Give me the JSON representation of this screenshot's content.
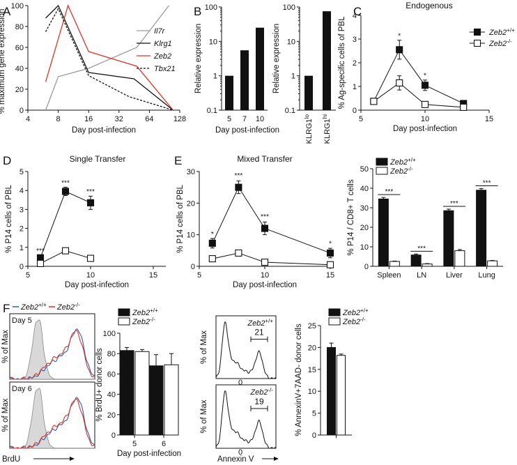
{
  "colors": {
    "ink": "#111111",
    "gray": "#9a9a9a",
    "red": "#e03020",
    "blue": "#2a5db0",
    "shade": "#d8d8d8"
  },
  "chart_data": [
    {
      "id": "A",
      "type": "line",
      "panel_label": "A",
      "xlabel": "Day post-infection",
      "ylabel": "% maximum gene expression",
      "x_scale": "log2",
      "xlim": [
        4,
        128
      ],
      "ylim": [
        0,
        100
      ],
      "x_ticks": [
        "4",
        "8",
        "16",
        "32",
        "64",
        "128"
      ],
      "y_ticks": [
        "0",
        "20",
        "40",
        "60",
        "80",
        "100"
      ],
      "series": [
        {
          "name": "Il7r",
          "color": "gray",
          "style": "solid",
          "x": [
            6,
            8,
            16,
            48,
            100
          ],
          "y": [
            0,
            32,
            40,
            60,
            100
          ]
        },
        {
          "name": "Klrg1",
          "color": "black",
          "style": "solid",
          "x": [
            6,
            8,
            16,
            45,
            110
          ],
          "y": [
            88,
            100,
            36,
            30,
            0
          ]
        },
        {
          "name": "Zeb2",
          "color": "red",
          "style": "solid",
          "x": [
            6,
            10,
            16,
            48,
            110
          ],
          "y": [
            27,
            100,
            56,
            42,
            0
          ]
        },
        {
          "name": "Tbx21",
          "color": "black",
          "style": "dashed",
          "x": [
            6,
            8,
            16,
            40,
            110
          ],
          "y": [
            75,
            97,
            33,
            13,
            0
          ]
        }
      ]
    },
    {
      "id": "B1",
      "type": "bar",
      "panel_label": "B",
      "xlabel": "Day post-infection",
      "ylabel": "Relative expression",
      "y_scale": "log10",
      "ylim": [
        0.1,
        100
      ],
      "y_ticks": [
        "0.1",
        "1",
        "10",
        "100"
      ],
      "categories": [
        "5",
        "7",
        "10"
      ],
      "values": [
        1,
        5.5,
        25
      ]
    },
    {
      "id": "B2",
      "type": "bar",
      "xlabel": "",
      "ylabel": "Relative expression",
      "y_scale": "log10",
      "ylim": [
        0.1,
        100
      ],
      "y_ticks": [
        "0.1",
        "1",
        "10",
        "100"
      ],
      "categories": [
        "KLRG1lo",
        "KLRG1hi"
      ],
      "category_labels": [
        [
          "KLRG1",
          "lo"
        ],
        [
          "KLRG1",
          "hi"
        ]
      ],
      "values": [
        1,
        75
      ]
    },
    {
      "id": "C",
      "type": "line",
      "panel_label": "C",
      "title": "Endogenous",
      "xlabel": "Day post-infection",
      "ylabel": "% Ag-specific cells of PBL",
      "xlim": [
        5,
        15
      ],
      "ylim": [
        0,
        4
      ],
      "x_ticks": [
        "5",
        "10",
        "15"
      ],
      "y_ticks": [
        "0",
        "1",
        "2",
        "3",
        "4"
      ],
      "legend": [
        {
          "base": "Zeb2",
          "sup": "+/+",
          "marker": "filled"
        },
        {
          "base": "Zeb2",
          "sup": "-/-",
          "marker": "open"
        }
      ],
      "series": [
        {
          "name": "Zeb2+/+",
          "marker": "filled",
          "x": [
            6,
            8,
            10,
            13
          ],
          "y": [
            0.37,
            2.55,
            1.05,
            0.28
          ],
          "err": [
            0,
            0.4,
            0.22,
            0.05
          ]
        },
        {
          "name": "Zeb2-/-",
          "marker": "open",
          "x": [
            6,
            8,
            10,
            13
          ],
          "y": [
            0.37,
            1.15,
            0.24,
            0.12
          ],
          "err": [
            0,
            0.3,
            0.05,
            0.03
          ]
        }
      ],
      "annotations": [
        {
          "x": 8,
          "y": 3.05,
          "text": "*"
        },
        {
          "x": 10,
          "y": 1.37,
          "text": "*"
        }
      ]
    },
    {
      "id": "D",
      "type": "line",
      "panel_label": "D",
      "title": "Single Transfer",
      "xlabel": "Day post-infection",
      "ylabel": "% P14 cells of PBL",
      "xlim": [
        5,
        16
      ],
      "ylim": [
        0,
        5
      ],
      "x_ticks": [
        "5",
        "10",
        "15"
      ],
      "y_ticks": [
        "0",
        "1",
        "2",
        "3",
        "4",
        "5"
      ],
      "series": [
        {
          "name": "Zeb2+/+",
          "marker": "filled",
          "x": [
            6,
            8,
            10
          ],
          "y": [
            0.45,
            3.95,
            3.35
          ],
          "err": [
            0.1,
            0.22,
            0.35
          ]
        },
        {
          "name": "Zeb2-/-",
          "marker": "open",
          "x": [
            6,
            8,
            10
          ],
          "y": [
            0.15,
            0.82,
            0.42
          ],
          "err": [
            0.03,
            0.08,
            0.05
          ]
        }
      ],
      "annotations": [
        {
          "x": 6,
          "y": 0.7,
          "text": "***"
        },
        {
          "x": 8,
          "y": 4.28,
          "text": "***"
        },
        {
          "x": 10,
          "y": 3.82,
          "text": "***"
        }
      ]
    },
    {
      "id": "E1",
      "type": "line",
      "panel_label": "E",
      "title": "Mixed Transfer",
      "xlabel": "Day post-infection",
      "ylabel": "% P14 cells of PBL",
      "xlim": [
        5,
        15
      ],
      "ylim": [
        0,
        30
      ],
      "x_ticks": [
        "5",
        "10",
        "15"
      ],
      "y_ticks": [
        "0",
        "10",
        "20",
        "30"
      ],
      "series": [
        {
          "name": "Zeb2+/+",
          "marker": "filled",
          "x": [
            6,
            8,
            10,
            15
          ],
          "y": [
            7.3,
            25,
            12,
            4.2
          ],
          "err": [
            1.5,
            2,
            2,
            1.5
          ]
        },
        {
          "name": "Zeb2-/-",
          "marker": "open",
          "x": [
            6,
            8,
            10,
            15
          ],
          "y": [
            2.4,
            4.2,
            1.3,
            0.5
          ],
          "err": [
            0.3,
            0.5,
            0.2,
            0.1
          ]
        }
      ],
      "annotations": [
        {
          "x": 6,
          "y": 9.5,
          "text": "*"
        },
        {
          "x": 8,
          "y": 28,
          "text": "***"
        },
        {
          "x": 10,
          "y": 15,
          "text": "***"
        },
        {
          "x": 15,
          "y": 6.5,
          "text": "*"
        }
      ]
    },
    {
      "id": "E2",
      "type": "bar",
      "xlabel": "",
      "ylabel": "% P14 / CD8+ T cells",
      "ylim": [
        0,
        50
      ],
      "y_ticks": [
        "0",
        "10",
        "20",
        "30",
        "40",
        "50"
      ],
      "categories": [
        "Spleen",
        "LN",
        "Liver",
        "Lung"
      ],
      "legend": [
        {
          "base": "Zeb2",
          "sup": "+/+",
          "marker": "filled"
        },
        {
          "base": "Zeb2",
          "sup": "-/-",
          "marker": "open"
        }
      ],
      "series": [
        {
          "name": "Zeb2+/+",
          "fill": "black",
          "values": [
            34.5,
            5.8,
            28.5,
            39
          ],
          "err": [
            0.8,
            0.5,
            0.8,
            0.8
          ]
        },
        {
          "name": "Zeb2-/-",
          "fill": "white",
          "values": [
            2.5,
            1.2,
            8,
            2.8
          ],
          "err": [
            0.2,
            0.2,
            0.6,
            0.2
          ]
        }
      ],
      "annotations": [
        "***",
        "***",
        "***",
        "***"
      ]
    },
    {
      "id": "F_hist_brdu",
      "type": "histogram",
      "panel_label": "F",
      "legend": [
        {
          "base": "Zeb2",
          "sup": "+/+",
          "color": "blue"
        },
        {
          "base": "Zeb2",
          "sup": "-/-",
          "color": "red"
        }
      ],
      "ylabel": "% of Max",
      "xlabel": "BrdU",
      "subpanels": [
        {
          "label": "Day 5"
        },
        {
          "label": "Day 6"
        }
      ],
      "tick": "0"
    },
    {
      "id": "F_bar_brdu",
      "type": "bar",
      "ylabel": "% BrdU+ donor cells",
      "xlabel": "Day post-infection",
      "ylim": [
        0,
        100
      ],
      "y_ticks": [
        "0",
        "20",
        "40",
        "60",
        "80",
        "100"
      ],
      "categories": [
        "5",
        "6"
      ],
      "legend": [
        {
          "base": "Zeb2",
          "sup": "+/+",
          "marker": "filled"
        },
        {
          "base": "Zeb2",
          "sup": "-/-",
          "marker": "open"
        }
      ],
      "series": [
        {
          "name": "Zeb2+/+",
          "fill": "black",
          "values": [
            83,
            68
          ],
          "err": [
            3,
            11
          ]
        },
        {
          "name": "Zeb2-/-",
          "fill": "white",
          "values": [
            82,
            69
          ],
          "err": [
            2,
            11
          ]
        }
      ]
    },
    {
      "id": "F_hist_annexin",
      "type": "histogram",
      "ylabel": "% of Max",
      "xlabel": "Annexin V",
      "subpanels": [
        {
          "label": "Zeb2+/+",
          "label_base": "Zeb2",
          "label_sup": "+/+",
          "gate": "21"
        },
        {
          "label": "Zeb2-/-",
          "label_base": "Zeb2",
          "label_sup": "-/-",
          "gate": "19"
        }
      ],
      "tick": "0"
    },
    {
      "id": "F_bar_annexin",
      "type": "bar",
      "ylabel": "% AnnexinV+7AAD- donor cells",
      "ylim": [
        0,
        25
      ],
      "y_ticks": [
        "0",
        "5",
        "10",
        "15",
        "20",
        "25"
      ],
      "categories": [
        ""
      ],
      "legend": [
        {
          "base": "Zeb2",
          "sup": "+/+",
          "marker": "filled"
        },
        {
          "base": "Zeb2",
          "sup": "-/-",
          "marker": "open"
        }
      ],
      "series": [
        {
          "name": "Zeb2+/+",
          "fill": "black",
          "values": [
            20
          ],
          "err": [
            1
          ]
        },
        {
          "name": "Zeb2-/-",
          "fill": "white",
          "values": [
            18.2
          ],
          "err": [
            0.3
          ]
        }
      ]
    }
  ]
}
